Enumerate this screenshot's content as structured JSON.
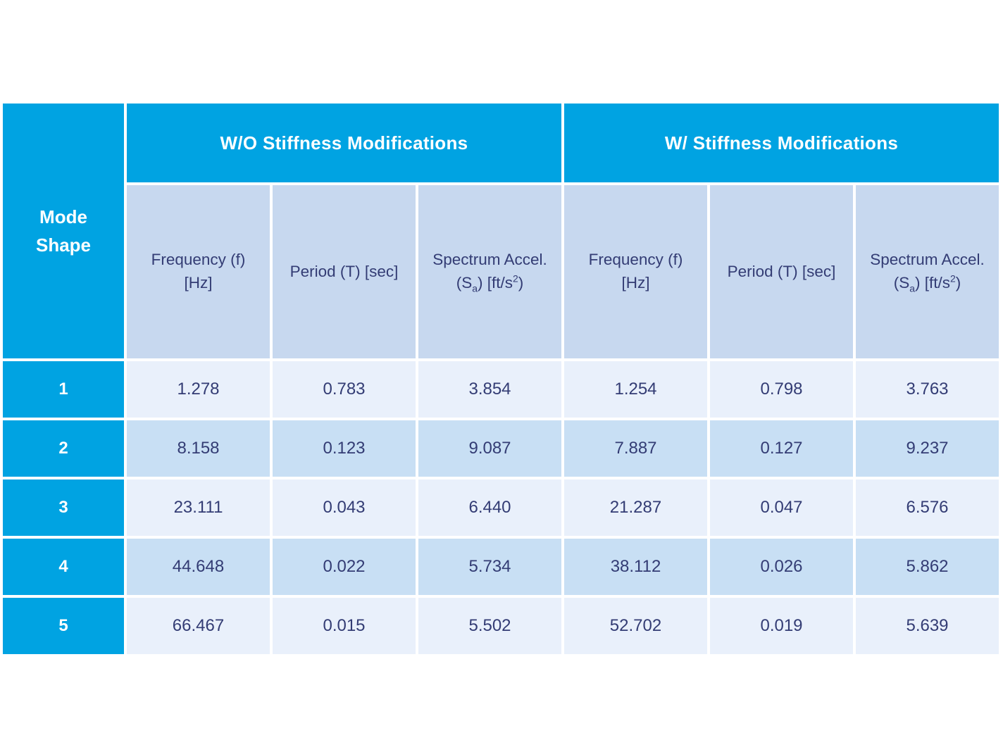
{
  "colors": {
    "accent": "#00a3e2",
    "navy": "#333c74",
    "subheader_bg": "#c7d8ef",
    "row_light": "#e9f0fb",
    "row_shaded": "#c8dff4",
    "page_bg": "#ffffff"
  },
  "table": {
    "corner_header": {
      "line1": "Mode",
      "line2": "Shape"
    },
    "groups": [
      {
        "label": "W/O Stiffness Modifications"
      },
      {
        "label": "W/ Stiffness Modifications"
      }
    ],
    "subheaders": {
      "frequency": {
        "line1": "Frequency (f)",
        "line2": "[Hz]"
      },
      "period": {
        "line1": "Period (T) [sec]"
      },
      "spectrum": {
        "line1": "Spectrum Accel.",
        "l2_pre": "(S",
        "l2_sub": "a",
        "l2_mid": ") [ft/s",
        "l2_sup": "2",
        "l2_post": ")"
      }
    },
    "rows": [
      {
        "mode": "1",
        "values": [
          "1.278",
          "0.783",
          "3.854",
          "1.254",
          "0.798",
          "3.763"
        ]
      },
      {
        "mode": "2",
        "values": [
          "8.158",
          "0.123",
          "9.087",
          "7.887",
          "0.127",
          "9.237"
        ]
      },
      {
        "mode": "3",
        "values": [
          "23.111",
          "0.043",
          "6.440",
          "21.287",
          "0.047",
          "6.576"
        ]
      },
      {
        "mode": "4",
        "values": [
          "44.648",
          "0.022",
          "5.734",
          "38.112",
          "0.026",
          "5.862"
        ]
      },
      {
        "mode": "5",
        "values": [
          "66.467",
          "0.015",
          "5.502",
          "52.702",
          "0.019",
          "5.639"
        ]
      }
    ]
  },
  "chart_data": {
    "type": "table",
    "title": "",
    "column_groups": [
      {
        "label": "W/O Stiffness Modifications",
        "span": [
          1,
          3
        ]
      },
      {
        "label": "W/ Stiffness Modifications",
        "span": [
          4,
          6
        ]
      }
    ],
    "columns": [
      "Mode Shape",
      "Frequency (f) [Hz]",
      "Period (T) [sec]",
      "Spectrum Accel. (Sa) [ft/s2)",
      "Frequency (f) [Hz]",
      "Period (T) [sec]",
      "Spectrum Accel. (Sa) [ft/s2)"
    ],
    "rows": [
      [
        1,
        1.278,
        0.783,
        3.854,
        1.254,
        0.798,
        3.763
      ],
      [
        2,
        8.158,
        0.123,
        9.087,
        7.887,
        0.127,
        9.237
      ],
      [
        3,
        23.111,
        0.043,
        6.44,
        21.287,
        0.047,
        6.576
      ],
      [
        4,
        44.648,
        0.022,
        5.734,
        38.112,
        0.026,
        5.862
      ],
      [
        5,
        66.467,
        0.015,
        5.502,
        52.702,
        0.019,
        5.639
      ]
    ]
  }
}
